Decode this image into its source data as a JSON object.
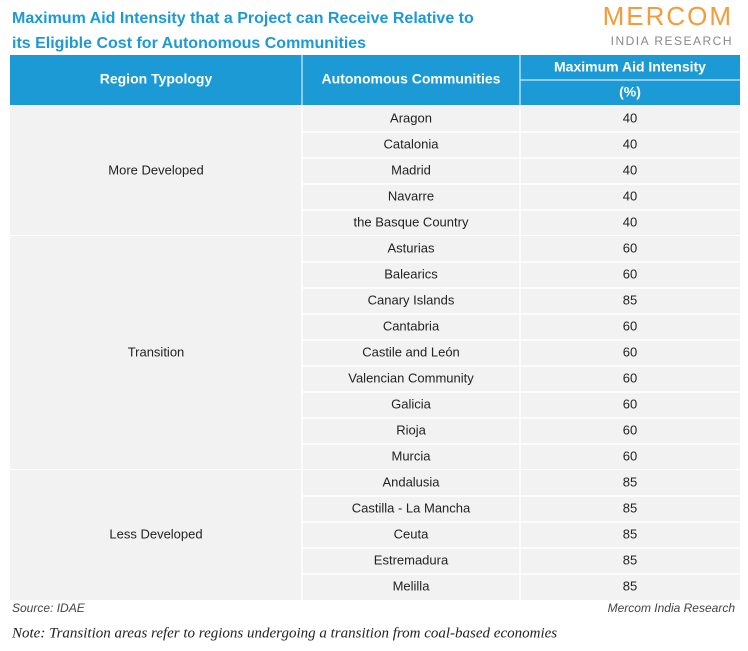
{
  "header": {
    "title_lines": [
      "Maximum Aid Intensity that a Project can Receive Relative to",
      "its Eligible Cost for Autonomous Communities"
    ],
    "logo": {
      "name": "MERCOM",
      "subtitle": "INDIA RESEARCH"
    }
  },
  "table": {
    "columns": [
      "Region Typology",
      "Autonomous Communities",
      "Maximum Aid Intensity"
    ],
    "unit": "(%)",
    "groups": [
      {
        "region": "More Developed",
        "rows": [
          [
            "Aragon",
            40
          ],
          [
            "Catalonia",
            40
          ],
          [
            "Madrid",
            40
          ],
          [
            "Navarre",
            40
          ],
          [
            "the Basque Country",
            40
          ]
        ]
      },
      {
        "region": "Transition",
        "rows": [
          [
            "Asturias",
            60
          ],
          [
            "Balearics",
            60
          ],
          [
            "Canary Islands",
            85
          ],
          [
            "Cantabria",
            60
          ],
          [
            "Castile and León",
            60
          ],
          [
            "Valencian Community",
            60
          ],
          [
            "Galicia",
            60
          ],
          [
            "Rioja",
            60
          ],
          [
            "Murcia",
            60
          ]
        ]
      },
      {
        "region": "Less Developed",
        "rows": [
          [
            "Andalusia",
            85
          ],
          [
            "Castilla - La Mancha",
            85
          ],
          [
            "Ceuta",
            85
          ],
          [
            "Estremadura",
            85
          ],
          [
            "Melilla",
            85
          ]
        ]
      }
    ]
  },
  "footer": {
    "source": "Source: IDAE",
    "credit": "Mercom India Research",
    "note": "Note: Transition areas refer to regions undergoing a transition from coal-based economies"
  }
}
